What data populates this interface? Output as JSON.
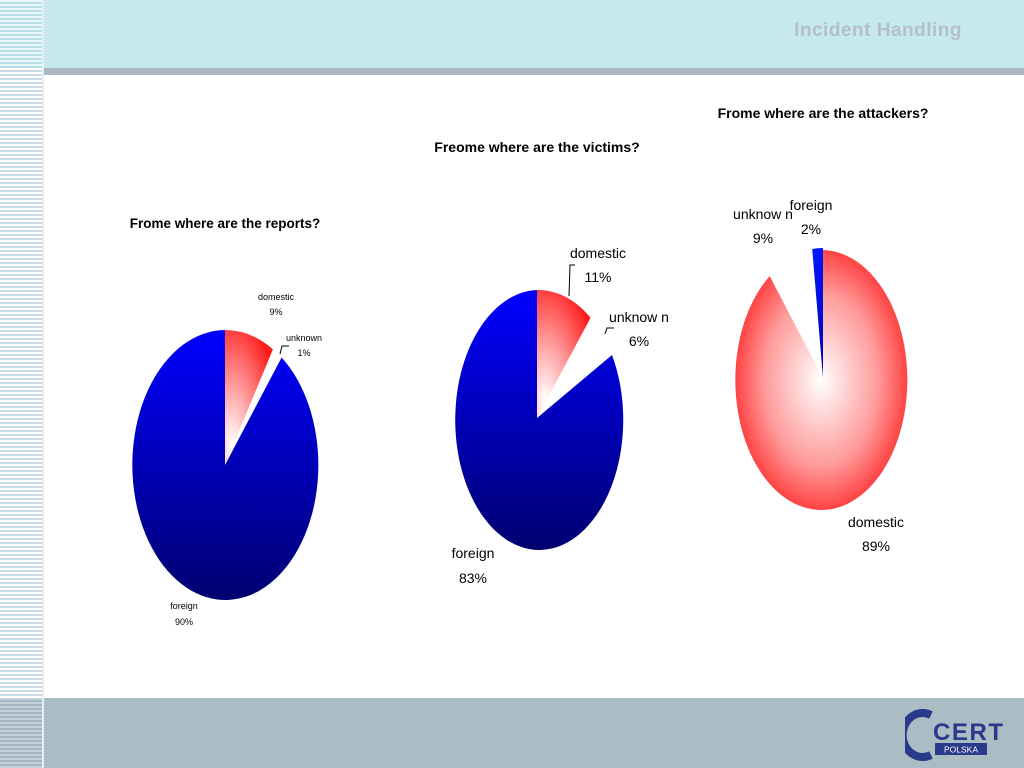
{
  "header": {
    "title": "Incident Handling"
  },
  "logo": {
    "text_big": "CERT",
    "text_small": "POLSKA"
  },
  "colors": {
    "domestic": "#ff1a1a",
    "foreign": "#0000c8",
    "unknown": "#ffffff"
  },
  "chart_data": [
    {
      "type": "pie",
      "title": "Frome where are the reports?",
      "slices": [
        {
          "label": "domestic",
          "value": 9,
          "pct": "9%",
          "color": "red"
        },
        {
          "label": "unknown",
          "value": 1,
          "pct": "1%",
          "color": "white"
        },
        {
          "label": "foreign",
          "value": 90,
          "pct": "90%",
          "color": "blue"
        }
      ]
    },
    {
      "type": "pie",
      "title": "Freome where are the victims?",
      "slices": [
        {
          "label": "domestic",
          "value": 11,
          "pct": "11%",
          "color": "red"
        },
        {
          "label": "unknow n",
          "value": 6,
          "pct": "6%",
          "color": "white"
        },
        {
          "label": "foreign",
          "value": 83,
          "pct": "83%",
          "color": "blue"
        }
      ]
    },
    {
      "type": "pie",
      "title": "Frome where are the attackers?",
      "slices": [
        {
          "label": "domestic",
          "value": 89,
          "pct": "89%",
          "color": "red"
        },
        {
          "label": "unknow n",
          "value": 9,
          "pct": "9%",
          "color": "white"
        },
        {
          "label": "foreign",
          "value": 2,
          "pct": "2%",
          "color": "blue"
        }
      ]
    }
  ]
}
